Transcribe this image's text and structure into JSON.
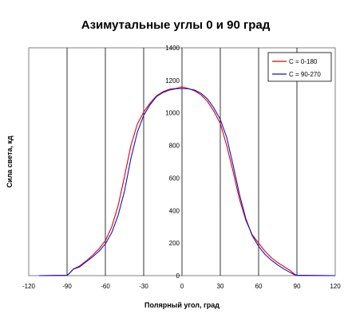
{
  "chart_data": {
    "type": "line",
    "title": "Азимутальные углы 0 и 90 град",
    "xlabel": "Полярный угол, град",
    "ylabel": "Сила света, кд",
    "xlim": [
      -120,
      120
    ],
    "ylim": [
      0,
      1400
    ],
    "x_ticks": [
      -120,
      -90,
      -60,
      -30,
      0,
      30,
      60,
      90,
      120
    ],
    "y_ticks": [
      0,
      200,
      400,
      600,
      800,
      1000,
      1200,
      1400
    ],
    "x_tick_labels": [
      "-120",
      "-90",
      "-60",
      "-30",
      "0",
      "30",
      "60",
      "90",
      "120"
    ],
    "y_tick_labels": [
      "0",
      "200",
      "400",
      "600",
      "800",
      "1000",
      "1200",
      "1400"
    ],
    "grid": "vertical",
    "legend_position": "top-right",
    "series": [
      {
        "name": "C = 0-180",
        "color": "#e00000",
        "x": [
          -112,
          -90,
          -88,
          -85,
          -80,
          -75,
          -70,
          -65,
          -60,
          -55,
          -50,
          -45,
          -40,
          -35,
          -30,
          -25,
          -20,
          -15,
          -10,
          -5,
          0,
          5,
          10,
          15,
          20,
          25,
          30,
          35,
          40,
          45,
          50,
          55,
          60,
          65,
          70,
          75,
          80,
          85,
          88,
          90,
          120
        ],
        "y": [
          0,
          2,
          15,
          40,
          60,
          90,
          125,
          165,
          215,
          300,
          430,
          610,
          800,
          930,
          1005,
          1060,
          1105,
          1130,
          1145,
          1150,
          1160,
          1150,
          1135,
          1110,
          1070,
          1010,
          935,
          800,
          640,
          470,
          340,
          250,
          200,
          150,
          110,
          80,
          55,
          30,
          10,
          2,
          0
        ]
      },
      {
        "name": "C = 90-270",
        "color": "#1010d0",
        "x": [
          -112,
          -90,
          -88,
          -85,
          -80,
          -75,
          -70,
          -65,
          -60,
          -55,
          -50,
          -45,
          -40,
          -35,
          -30,
          -25,
          -20,
          -15,
          -10,
          -5,
          0,
          5,
          10,
          15,
          20,
          25,
          30,
          35,
          40,
          45,
          50,
          55,
          60,
          65,
          70,
          75,
          80,
          85,
          88,
          90,
          120
        ],
        "y": [
          0,
          2,
          15,
          40,
          55,
          85,
          115,
          150,
          195,
          265,
          370,
          520,
          720,
          880,
          985,
          1050,
          1100,
          1125,
          1140,
          1148,
          1150,
          1148,
          1140,
          1120,
          1085,
          1030,
          960,
          850,
          680,
          500,
          350,
          245,
          180,
          130,
          95,
          65,
          40,
          18,
          6,
          2,
          0
        ]
      }
    ]
  }
}
